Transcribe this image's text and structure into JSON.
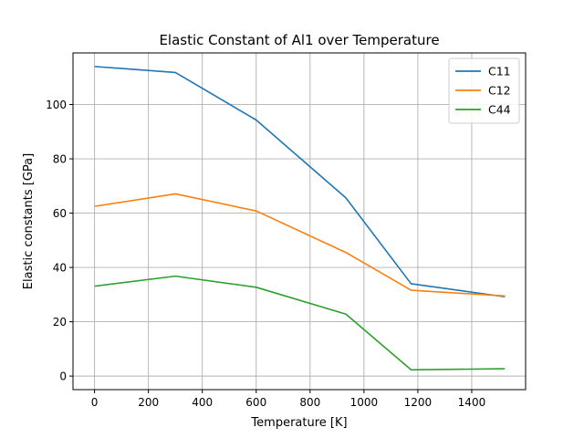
{
  "chart_data": {
    "type": "line",
    "title": "Elastic Constant of Al1 over Temperature",
    "xlabel": "Temperature [K]",
    "ylabel": "Elastic constants [GPa]",
    "xlim": [
      -80,
      1600
    ],
    "ylim": [
      -5,
      119
    ],
    "xticks": [
      0,
      200,
      400,
      600,
      800,
      1000,
      1200,
      1400
    ],
    "yticks": [
      0,
      20,
      40,
      60,
      80,
      100
    ],
    "grid": true,
    "legend_position": "top-right",
    "x": [
      0,
      300,
      600,
      933,
      1175,
      1523
    ],
    "series": [
      {
        "name": "C11",
        "color": "#1f77b4",
        "values": [
          114.0,
          111.8,
          94.3,
          65.6,
          34.0,
          29.2
        ]
      },
      {
        "name": "C12",
        "color": "#ff7f0e",
        "values": [
          62.5,
          67.1,
          60.8,
          45.5,
          31.6,
          29.5
        ]
      },
      {
        "name": "C44",
        "color": "#2ca02c",
        "values": [
          33.1,
          36.8,
          32.7,
          22.8,
          2.3,
          2.7
        ]
      }
    ]
  }
}
